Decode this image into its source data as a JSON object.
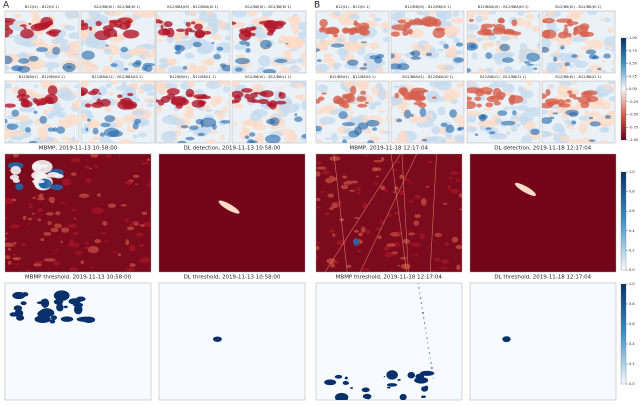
{
  "panels": [
    {
      "letter": "A",
      "small_titles": [
        "B12(t1) - B12(t0 1)",
        "B12/B8(t0) - B12/B8(t0 1)",
        "B12/B8A(t0) - B12/B8A(t0 1)",
        "B12/B8(t0) - B12/B8(t0 1)",
        "B12/B8(t1) - B12/B8(t0 1)",
        "B12/B8A(t1) - B12/B8A(t0 1)",
        "B12/B8(t1) - B12/B8(t1 1)",
        "B12/B8(t0) - B12/B8(t1 1)"
      ],
      "detection_titles": [
        "MBMP, 2019-11-13 10:58:00",
        "DL detection, 2019-11-13 10:58:00"
      ],
      "threshold_titles": [
        "MBMP threshold, 2019-11-13 10:58:00",
        "DL threshold, 2019-11-13 10:58:00"
      ]
    },
    {
      "letter": "B",
      "small_titles": [
        "B12(t1) - B12(t0 1)",
        "B12/B8(t0) - B12/B8(t0 1)",
        "B12/B8A(t0) - B12/B8A(t0 1)",
        "B12/B8(t0) - B12/B8(t0 1)",
        "B12/B8(t1) - B12/B8(t0 1)",
        "B12/B8A(t1) - B12/B8A(t0 1)",
        "B12/B8(t1) - B12/B8(t1 1)",
        "B12/B8(t0) - B12/B8(t1 1)"
      ],
      "detection_titles": [
        "MBMP, 2019-11-18 12:17:04",
        "DL detection, 2019-11-18 12:17:04"
      ],
      "threshold_titles": [
        "MBMP threshold, 2019-11-18 12:17:04",
        "DL threshold, 2019-11-18 12:17:04"
      ]
    }
  ],
  "colorbars": [
    {
      "ticks": [
        "1.00",
        "0.75",
        "0.50",
        "0.25",
        "0.00",
        "-0.25",
        "-0.50",
        "-0.75",
        "-1.00"
      ]
    },
    {
      "ticks": [
        "1.0",
        "0.8",
        "0.6",
        "0.4",
        "0.2",
        "0.0"
      ]
    },
    {
      "ticks": [
        "1.0",
        "0.8",
        "0.6",
        "0.4",
        "0.2",
        "0.0"
      ]
    }
  ]
}
